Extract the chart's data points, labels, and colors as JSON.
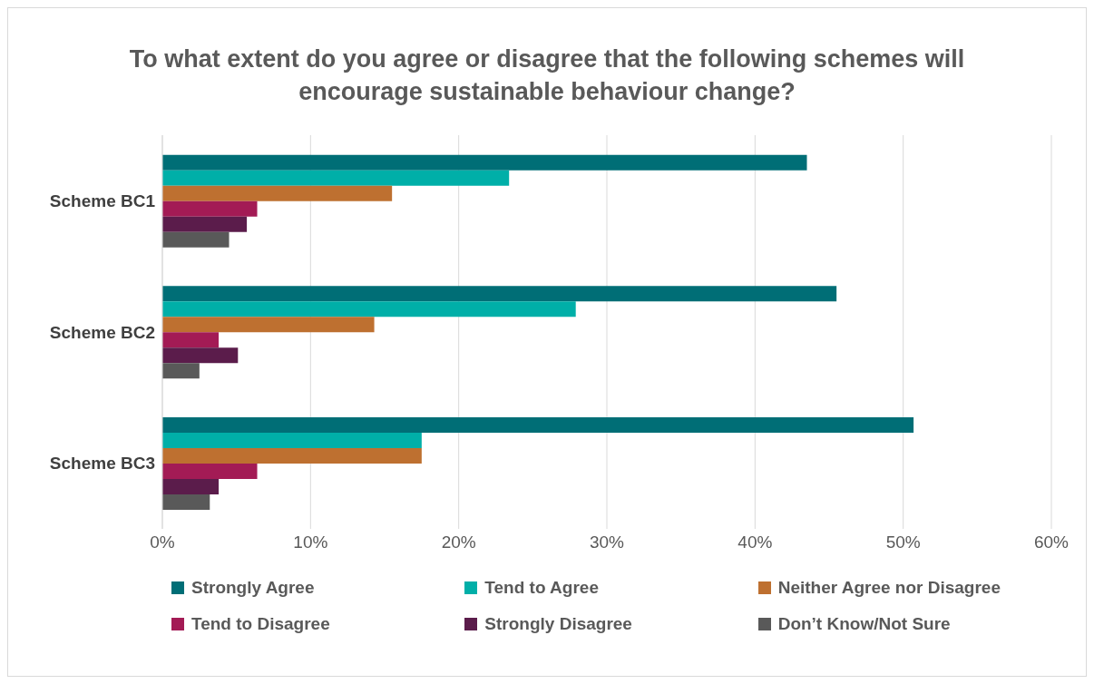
{
  "chart_data": {
    "type": "bar",
    "orientation": "horizontal",
    "title": "To what extent do you agree or disagree that the following schemes will encourage sustainable behaviour change?",
    "categories": [
      "Scheme BC1",
      "Scheme BC2",
      "Scheme BC3"
    ],
    "series": [
      {
        "name": "Strongly Agree",
        "color": "#006e76",
        "values": [
          43.5,
          45.5,
          50.7
        ]
      },
      {
        "name": "Tend to Agree",
        "color": "#00afa8",
        "values": [
          23.4,
          27.9,
          17.5
        ]
      },
      {
        "name": "Neither Agree nor Disagree",
        "color": "#be7030",
        "values": [
          15.5,
          14.3,
          17.5
        ]
      },
      {
        "name": "Tend to Disagree",
        "color": "#a31b55",
        "values": [
          6.4,
          3.8,
          6.4
        ]
      },
      {
        "name": "Strongly Disagree",
        "color": "#5b1c4b",
        "values": [
          5.7,
          5.1,
          3.8
        ]
      },
      {
        "name": "Don’t Know/Not Sure",
        "color": "#595959",
        "values": [
          4.5,
          2.5,
          3.2
        ]
      }
    ],
    "xlim": [
      0,
      60
    ],
    "xticks": [
      {
        "value": 0,
        "label": "0%"
      },
      {
        "value": 10,
        "label": "10%"
      },
      {
        "value": 20,
        "label": "20%"
      },
      {
        "value": 30,
        "label": "30%"
      },
      {
        "value": 40,
        "label": "40%"
      },
      {
        "value": 50,
        "label": "50%"
      },
      {
        "value": 60,
        "label": "60%"
      }
    ],
    "grid": "x",
    "legend": "bottom"
  }
}
